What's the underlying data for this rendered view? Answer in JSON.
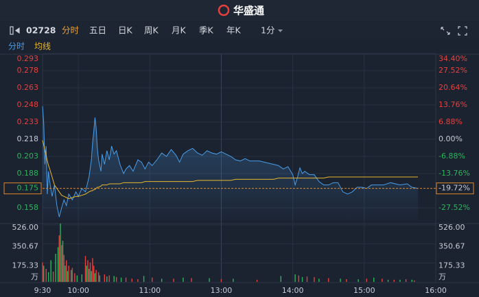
{
  "header": {
    "brand": "华盛通"
  },
  "toolbar": {
    "code": "02728",
    "tabs": [
      "分时",
      "五日",
      "日K",
      "周K",
      "月K",
      "季K",
      "年K"
    ],
    "interval": "1分"
  },
  "chart_data": [
    {
      "type": "line",
      "x": [
        0,
        1,
        2,
        3,
        4,
        5,
        6,
        8,
        10,
        12,
        14,
        16,
        18,
        20,
        22,
        25,
        28,
        30,
        33,
        36,
        39,
        41,
        42,
        43,
        44,
        45,
        46,
        47,
        49,
        50,
        52,
        54,
        56,
        58,
        60,
        62,
        65,
        68,
        70,
        73,
        76,
        80,
        83,
        86,
        89,
        92,
        96,
        100,
        104,
        108,
        112,
        115,
        118,
        122,
        126,
        130,
        134,
        138,
        142,
        146,
        150,
        154,
        158,
        162,
        166,
        170,
        174,
        178,
        182,
        186,
        190,
        194,
        198,
        202,
        206,
        210,
        212,
        214,
        216,
        218,
        220,
        224,
        228,
        232,
        236,
        240,
        244,
        248,
        252,
        256,
        260,
        264,
        268,
        272,
        276,
        280,
        286,
        292,
        300,
        306,
        310,
        315
      ],
      "series": [
        {
          "name": "分时",
          "color": "#4a9ee8",
          "values": [
            0.247,
            0.232,
            0.196,
            0.212,
            0.17,
            0.19,
            0.181,
            0.168,
            0.178,
            0.16,
            0.15,
            0.158,
            0.165,
            0.16,
            0.17,
            0.165,
            0.172,
            0.168,
            0.175,
            0.172,
            0.185,
            0.2,
            0.215,
            0.225,
            0.237,
            0.228,
            0.21,
            0.2,
            0.19,
            0.205,
            0.196,
            0.208,
            0.2,
            0.212,
            0.205,
            0.208,
            0.196,
            0.188,
            0.192,
            0.195,
            0.19,
            0.2,
            0.198,
            0.192,
            0.198,
            0.195,
            0.2,
            0.206,
            0.203,
            0.209,
            0.204,
            0.198,
            0.205,
            0.208,
            0.21,
            0.206,
            0.204,
            0.208,
            0.206,
            0.205,
            0.207,
            0.205,
            0.203,
            0.2,
            0.199,
            0.201,
            0.199,
            0.199,
            0.199,
            0.198,
            0.197,
            0.196,
            0.195,
            0.192,
            0.194,
            0.187,
            0.178,
            0.185,
            0.193,
            0.188,
            0.19,
            0.187,
            0.187,
            0.181,
            0.178,
            0.178,
            0.18,
            0.18,
            0.172,
            0.17,
            0.172,
            0.176,
            0.176,
            0.175,
            0.178,
            0.178,
            0.178,
            0.18,
            0.178,
            0.179,
            0.176,
            0.175
          ]
        },
        {
          "name": "均线",
          "color": "#e8b830",
          "values": [
            0.217,
            0.213,
            0.208,
            0.204,
            0.199,
            0.195,
            0.192,
            0.185,
            0.178,
            0.175,
            0.172,
            0.169,
            0.168,
            0.167,
            0.166,
            0.167,
            0.168,
            0.168,
            0.169,
            0.17,
            0.172,
            0.173,
            0.173,
            0.174,
            0.174,
            0.175,
            0.176,
            0.176,
            0.177,
            0.178,
            0.178,
            0.178,
            0.179,
            0.179,
            0.179,
            0.179,
            0.179,
            0.18,
            0.18,
            0.18,
            0.18,
            0.18,
            0.18,
            0.181,
            0.181,
            0.181,
            0.181,
            0.181,
            0.181,
            0.181,
            0.181,
            0.181,
            0.181,
            0.181,
            0.181,
            0.182,
            0.182,
            0.182,
            0.182,
            0.182,
            0.182,
            0.182,
            0.182,
            0.183,
            0.183,
            0.183,
            0.183,
            0.183,
            0.183,
            0.183,
            0.183,
            0.183,
            0.184,
            0.184,
            0.184,
            0.184,
            0.184,
            0.184,
            0.184,
            0.184,
            0.184,
            0.184,
            0.184,
            0.184,
            0.184,
            0.185,
            0.185,
            0.185,
            0.185,
            0.185,
            0.185,
            0.185,
            0.185,
            0.185,
            0.185,
            0.185,
            0.185,
            0.185,
            0.185,
            0.185,
            0.185,
            0.185
          ]
        }
      ],
      "xlim": [
        0,
        330
      ],
      "xticks": [
        {
          "value": 0,
          "label": "9:30"
        },
        {
          "value": 30,
          "label": "10:00"
        },
        {
          "value": 90,
          "label": "11:00"
        },
        {
          "value": 150,
          "label": "13:00"
        },
        {
          "value": 210,
          "label": "14:00"
        },
        {
          "value": 270,
          "label": "15:00"
        },
        {
          "value": 330,
          "label": "16:00"
        }
      ],
      "ylim": [
        0.1466,
        0.293
      ],
      "yticks": [
        0.293,
        0.278,
        0.263,
        0.248,
        0.233,
        0.218,
        0.203,
        0.188,
        0.158
      ],
      "y2lim": [
        -32.75,
        34.4
      ],
      "y2ticks": [
        {
          "value": 34.4,
          "label": "34.40%"
        },
        {
          "value": 27.52,
          "label": "27.52%"
        },
        {
          "value": 20.64,
          "label": "20.64%"
        },
        {
          "value": 13.76,
          "label": "13.76%"
        },
        {
          "value": 6.88,
          "label": "6.88%"
        },
        {
          "value": 0,
          "label": "0.00%"
        },
        {
          "value": -6.88,
          "label": "-6.88%"
        },
        {
          "value": -13.76,
          "label": "-13.76%"
        },
        {
          "value": -27.52,
          "label": "-27.52%"
        }
      ],
      "current": {
        "value": 0.175,
        "change": {
          "value": -19.72,
          "label": "-19.72%"
        }
      },
      "grid": true
    },
    {
      "type": "bar",
      "series": [
        {
          "color": "#e8413d",
          "x": [
            0,
            3,
            9,
            14,
            16,
            18,
            20,
            22,
            25,
            27,
            36,
            38,
            40,
            42,
            43,
            45,
            47,
            52,
            56,
            62,
            70,
            75,
            80,
            92,
            110,
            125,
            150,
            180,
            215,
            222,
            228,
            240,
            255,
            272,
            285,
            295,
            305,
            312
          ],
          "values": [
            180,
            120,
            95,
            430,
            340,
            250,
            200,
            150,
            130,
            80,
            240,
            200,
            180,
            220,
            150,
            110,
            90,
            70,
            60,
            45,
            40,
            30,
            25,
            40,
            30,
            35,
            25,
            20,
            60,
            50,
            45,
            35,
            25,
            30,
            30,
            20,
            25,
            15
          ]
        },
        {
          "color": "#2db55d",
          "x": [
            1,
            5,
            7,
            11,
            13,
            15,
            17,
            19,
            21,
            24,
            29,
            33,
            37,
            39,
            41,
            44,
            48,
            54,
            60,
            66,
            85,
            100,
            118,
            140,
            160,
            200,
            212,
            218,
            232,
            250,
            265,
            278,
            290,
            300,
            310
          ],
          "values": [
            150,
            90,
            200,
            260,
            320,
            540,
            380,
            150,
            100,
            110,
            60,
            70,
            150,
            120,
            100,
            80,
            60,
            50,
            55,
            40,
            55,
            30,
            40,
            35,
            30,
            55,
            70,
            45,
            30,
            30,
            25,
            40,
            20,
            20,
            20
          ]
        }
      ],
      "xlim": [
        0,
        330
      ],
      "ylim": [
        0,
        545
      ],
      "yticks": [
        {
          "value": 526,
          "label": "526.00"
        },
        {
          "value": 350.67,
          "label": "350.67"
        },
        {
          "value": 175.33,
          "label": "175.33"
        }
      ],
      "unit": "万"
    }
  ]
}
